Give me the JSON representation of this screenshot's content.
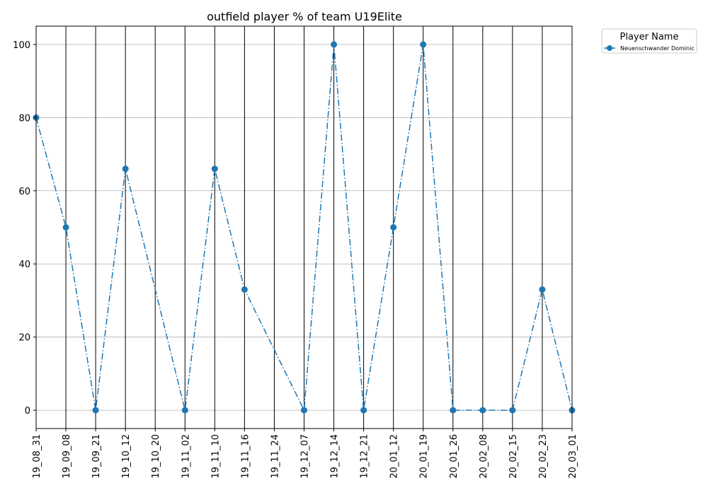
{
  "chart_data": {
    "type": "line",
    "title": "outfield player % of team U19Elite",
    "xlabel": "",
    "ylabel": "",
    "ylim": [
      -5,
      105
    ],
    "yticks": [
      0,
      20,
      40,
      60,
      80,
      100
    ],
    "grid": "y-horizontal, x-vertical at each category",
    "legend": {
      "title": "Player Name",
      "placement": "outside-top-right"
    },
    "categories": [
      "19_08_31",
      "19_09_08",
      "19_09_21",
      "19_10_12",
      "19_10_20",
      "19_11_02",
      "19_11_10",
      "19_11_16",
      "19_11_24",
      "19_12_07",
      "19_12_14",
      "19_12_21",
      "20_01_12",
      "20_01_19",
      "20_01_26",
      "20_02_08",
      "20_02_15",
      "20_02_23",
      "20_03_01"
    ],
    "series": [
      {
        "name": "Neuenschwander Dominic",
        "color": "#1f77b4",
        "style": "dash-dot",
        "marker": "circle",
        "values": [
          80,
          50,
          0,
          66,
          null,
          0,
          66,
          33,
          null,
          0,
          100,
          0,
          50,
          100,
          0,
          0,
          0,
          33,
          0
        ]
      }
    ]
  }
}
